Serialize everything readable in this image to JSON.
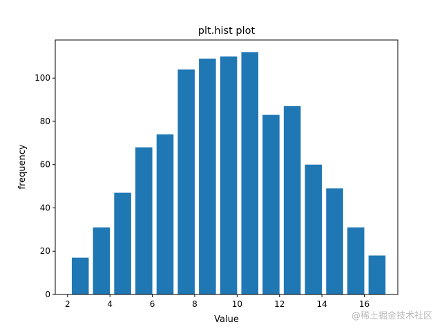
{
  "chart_data": {
    "type": "bar",
    "title": "plt.hist plot",
    "xlabel": "Value",
    "ylabel": "frequency",
    "x": [
      2.6,
      3.6,
      4.6,
      5.6,
      6.6,
      7.6,
      8.6,
      9.6,
      10.6,
      11.6,
      12.6,
      13.6,
      14.6,
      15.6,
      16.6
    ],
    "values": [
      17,
      31,
      47,
      68,
      74,
      104,
      109,
      110,
      112,
      83,
      87,
      60,
      49,
      31,
      18
    ],
    "bar_width": 0.8,
    "xlim": [
      1.42,
      17.58
    ],
    "ylim": [
      0,
      117.6
    ],
    "xticks": [
      2,
      4,
      6,
      8,
      10,
      12,
      14,
      16
    ],
    "yticks": [
      0,
      20,
      40,
      60,
      80,
      100
    ],
    "bar_color": "#1f77b4",
    "grid": false
  },
  "watermark": "@稀土掘金技术社区"
}
